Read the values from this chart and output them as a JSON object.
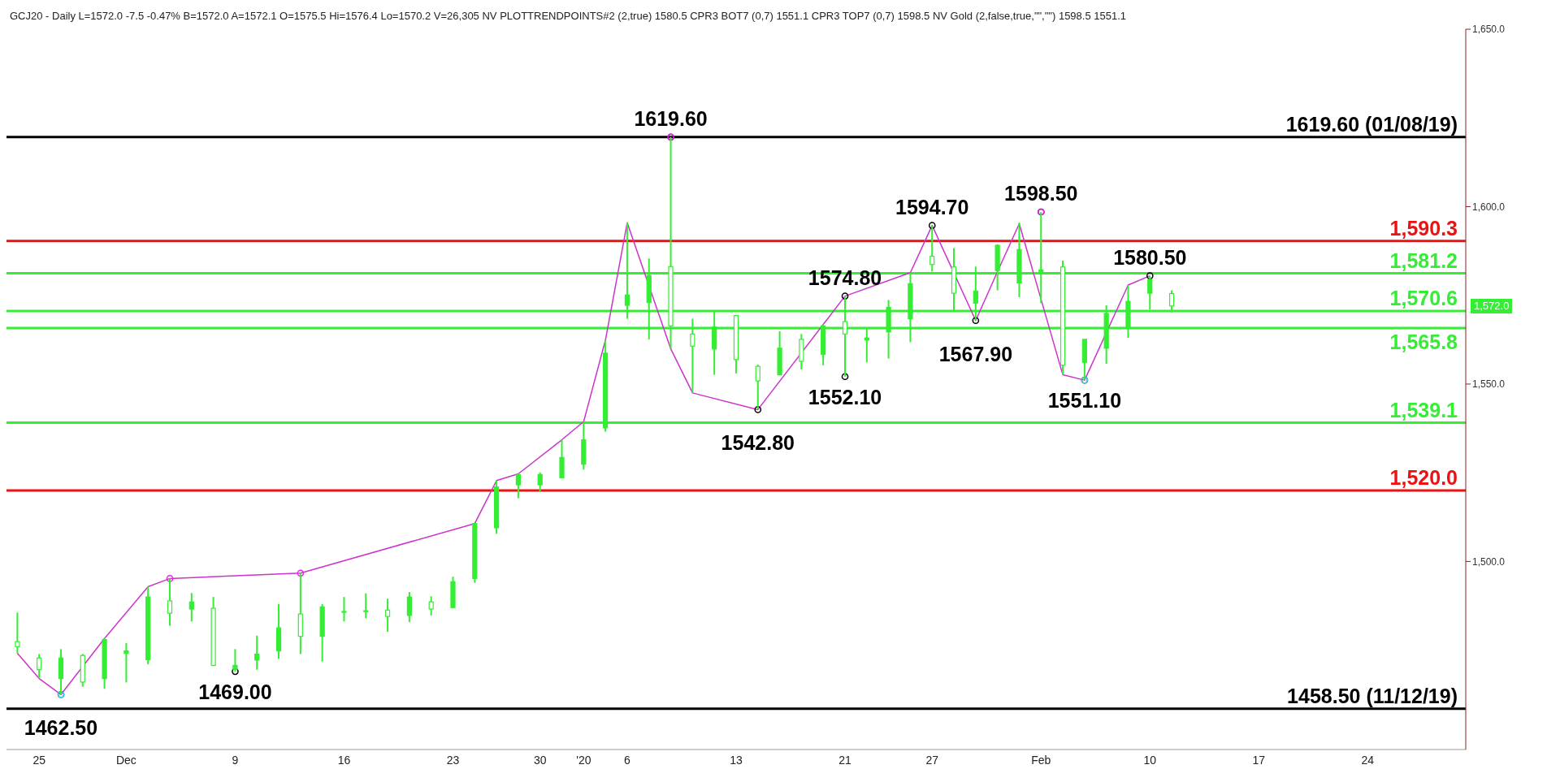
{
  "chart_data": {
    "type": "candlestick",
    "annotations": [
      "GCJ20 - Daily  L=1572.0  -7.5  -0.47%  B=1572.0  A=1572.1  O=1575.5  Hi=1576.4  Lo=1570.2  V=26,305  NV  PLOTTRENDPOINTS#2 (2,true)  1580.5  CPR3 BOT7 (0,7)  1551.1  CPR3 TOP7 (0,7)  1598.5  NV Gold (2,false,true,\"\",\"\")  1598.5  1551.1",
      "1,572.0"
    ],
    "categories": [
      null,
      "25",
      null,
      null,
      null,
      "Dec",
      null,
      null,
      null,
      null,
      "9",
      null,
      null,
      null,
      null,
      "16",
      null,
      null,
      null,
      null,
      "23",
      null,
      null,
      null,
      "30",
      null,
      "'20",
      null,
      "6",
      null,
      null,
      null,
      null,
      "13",
      null,
      null,
      null,
      null,
      "21",
      null,
      null,
      null,
      "27",
      null,
      null,
      null,
      null,
      "Feb",
      null,
      null,
      null,
      null,
      "10",
      null,
      null,
      null,
      null,
      "17",
      null,
      null,
      null,
      null,
      "24",
      null,
      null,
      null,
      null
    ],
    "ohlc": [
      [
        1477.4,
        1485.6,
        1474.1,
        1476.0
      ],
      [
        1472.8,
        1473.9,
        1467.0,
        1469.5
      ],
      [
        1467.0,
        1475.3,
        1462.5,
        1472.8
      ],
      [
        1473.5,
        1473.9,
        1464.7,
        1466.0
      ],
      [
        1467.0,
        1478.5,
        1464.1,
        1478.0
      ],
      [
        1474.1,
        1477.0,
        1465.9,
        1474.8
      ],
      [
        1472.3,
        1492.9,
        1471.0,
        1490.0
      ],
      [
        1488.9,
        1495.2,
        1481.9,
        1485.4
      ],
      [
        1486.6,
        1491.1,
        1483.1,
        1488.6
      ],
      [
        1486.8,
        1490.0,
        1470.5,
        1470.7
      ],
      [
        1469.6,
        1475.3,
        1469.0,
        1470.7
      ],
      [
        1472.2,
        1479.1,
        1469.5,
        1473.9
      ],
      [
        1474.8,
        1488.0,
        1472.6,
        1481.3
      ],
      [
        1485.2,
        1496.7,
        1473.9,
        1478.9
      ],
      [
        1478.9,
        1488.0,
        1471.8,
        1487.2
      ],
      [
        1485.9,
        1490.0,
        1483.1,
        1485.9
      ],
      [
        1486.1,
        1491.0,
        1484.0,
        1486.0
      ],
      [
        1486.3,
        1489.5,
        1480.2,
        1484.5
      ],
      [
        1484.8,
        1491.4,
        1482.9,
        1490.0
      ],
      [
        1488.6,
        1490.2,
        1484.8,
        1486.6
      ],
      [
        1487.0,
        1495.7,
        1487.0,
        1494.3
      ],
      [
        1495.2,
        1510.7,
        1494.0,
        1510.7
      ],
      [
        1509.5,
        1522.8,
        1507.8,
        1521.0
      ],
      [
        1521.6,
        1524.7,
        1517.8,
        1524.5
      ],
      [
        1521.6,
        1525.1,
        1519.7,
        1524.5
      ],
      [
        1523.6,
        1534.3,
        1523.6,
        1529.3
      ],
      [
        1527.4,
        1539.4,
        1525.9,
        1534.3
      ],
      [
        1537.7,
        1562.4,
        1536.6,
        1558.7
      ],
      [
        1572.2,
        1595.5,
        1568.4,
        1575.1
      ],
      [
        1573.0,
        1585.4,
        1562.6,
        1580.6
      ],
      [
        1583.1,
        1619.6,
        1559.9,
        1566.4
      ],
      [
        1564.1,
        1568.4,
        1547.5,
        1560.7
      ],
      [
        1559.9,
        1570.5,
        1552.6,
        1566.1
      ],
      [
        1569.3,
        1569.5,
        1553.0,
        1556.9
      ],
      [
        1555.0,
        1555.5,
        1542.8,
        1550.9
      ],
      [
        1552.6,
        1564.9,
        1552.6,
        1560.1
      ],
      [
        1562.6,
        1564.1,
        1554.1,
        1556.4
      ],
      [
        1558.4,
        1566.8,
        1555.3,
        1566.4
      ],
      [
        1567.6,
        1574.8,
        1552.1,
        1564.1
      ],
      [
        1562.4,
        1565.6,
        1556.1,
        1563.0
      ],
      [
        1564.7,
        1573.7,
        1557.2,
        1571.6
      ],
      [
        1568.4,
        1581.4,
        1561.8,
        1578.3
      ],
      [
        1586.0,
        1594.7,
        1581.7,
        1583.7
      ],
      [
        1583.0,
        1588.3,
        1570.7,
        1575.6
      ],
      [
        1572.8,
        1583.1,
        1567.9,
        1576.2
      ],
      [
        1582.0,
        1589.4,
        1576.4,
        1589.1
      ],
      [
        1578.5,
        1595.5,
        1574.5,
        1587.9
      ],
      [
        1581.4,
        1598.5,
        1572.8,
        1582.2
      ],
      [
        1583.0,
        1584.8,
        1552.6,
        1555.3
      ],
      [
        1556.1,
        1562.6,
        1551.1,
        1562.6
      ],
      [
        1560.1,
        1572.2,
        1555.7,
        1569.9
      ],
      [
        1565.9,
        1577.9,
        1563.0,
        1573.3
      ],
      [
        1575.6,
        1580.5,
        1571.0,
        1579.4
      ],
      [
        1575.5,
        1576.4,
        1570.2,
        1572.0
      ],
      null,
      null,
      null,
      null,
      null,
      null,
      null,
      null,
      null,
      null,
      null,
      null,
      null
    ],
    "color": "#33ee33",
    "series": [
      {
        "type": "line",
        "color": "#cc33cc",
        "values": [
          1474.1,
          1467.0,
          1462.5,
          null,
          1478.3,
          null,
          1492.9,
          1495.2,
          null,
          null,
          null,
          null,
          null,
          1496.7,
          null,
          null,
          null,
          null,
          null,
          null,
          null,
          1510.7,
          1522.8,
          1524.7,
          null,
          1534.3,
          1539.4,
          1562.4,
          1595.5,
          null,
          1559.9,
          1547.5,
          null,
          null,
          1542.8,
          null,
          null,
          null,
          1574.8,
          null,
          null,
          1581.4,
          1594.7,
          null,
          1567.9,
          1581.7,
          1595.2,
          null,
          1552.6,
          1551.1,
          null,
          1577.9,
          1580.5,
          null,
          null,
          null,
          null,
          null,
          null,
          null,
          null,
          null,
          null,
          null,
          null,
          null,
          null
        ]
      },
      {
        "type": "scatter",
        "color": "#000000",
        "marker": "circle",
        "values": [
          null,
          null,
          null,
          null,
          null,
          null,
          null,
          null,
          null,
          null,
          null,
          null,
          null,
          null,
          null,
          null,
          null,
          null,
          null,
          null,
          null,
          null,
          null,
          null,
          null,
          null,
          null,
          null,
          null,
          null,
          1619.6,
          null,
          null,
          null,
          null,
          null,
          null,
          null,
          1574.8,
          null,
          null,
          null,
          1594.7,
          null,
          null,
          null,
          null,
          1598.5,
          null,
          null,
          null,
          null,
          1580.5,
          null,
          null,
          null,
          null,
          null,
          null,
          null,
          null,
          null,
          null,
          null,
          null,
          null,
          null
        ],
        "value_labels": [
          null,
          null,
          null,
          null,
          null,
          null,
          null,
          null,
          null,
          null,
          null,
          null,
          null,
          null,
          null,
          null,
          null,
          null,
          null,
          null,
          null,
          null,
          null,
          null,
          null,
          null,
          null,
          null,
          null,
          null,
          "1619.60",
          null,
          null,
          null,
          null,
          null,
          null,
          null,
          "1574.80",
          null,
          null,
          null,
          "1594.70",
          null,
          null,
          null,
          null,
          "1598.50",
          null,
          null,
          null,
          null,
          "1580.50",
          null,
          null,
          null,
          null,
          null,
          null,
          null,
          null,
          null,
          null,
          null,
          null,
          null,
          null
        ]
      },
      {
        "type": "scatter",
        "color": "#000000",
        "marker": "circle",
        "values": [
          null,
          null,
          1462.5,
          null,
          null,
          null,
          null,
          null,
          null,
          null,
          1469.0,
          null,
          null,
          null,
          null,
          null,
          null,
          null,
          null,
          null,
          null,
          null,
          null,
          null,
          null,
          null,
          null,
          null,
          null,
          null,
          null,
          null,
          null,
          null,
          1542.8,
          null,
          null,
          null,
          1552.1,
          null,
          null,
          null,
          null,
          null,
          1567.9,
          null,
          null,
          null,
          null,
          1551.1,
          null,
          null,
          null,
          null,
          null,
          null,
          null,
          null,
          null,
          null,
          null,
          null,
          null,
          null,
          null,
          null,
          null
        ],
        "value_labels": [
          null,
          null,
          "1462.50",
          null,
          null,
          null,
          null,
          null,
          null,
          null,
          "1469.00",
          null,
          null,
          null,
          null,
          null,
          null,
          null,
          null,
          null,
          null,
          null,
          null,
          null,
          null,
          null,
          null,
          null,
          null,
          null,
          null,
          null,
          null,
          null,
          "1542.80",
          null,
          null,
          null,
          "1552.10",
          null,
          null,
          null,
          null,
          null,
          "1567.90",
          null,
          null,
          null,
          null,
          "1551.10",
          null,
          null,
          null,
          null,
          null,
          null,
          null,
          null,
          null,
          null,
          null,
          null,
          null,
          null,
          null,
          null,
          null
        ]
      },
      {
        "type": "scatter",
        "color": "#ee22ee",
        "marker": "circle",
        "values": [
          null,
          null,
          null,
          null,
          null,
          null,
          null,
          1495.2,
          null,
          null,
          null,
          null,
          null,
          1496.7,
          null,
          null,
          null,
          null,
          null,
          null,
          null,
          null,
          null,
          null,
          null,
          null,
          null,
          null,
          null,
          null,
          1619.6,
          null,
          null,
          null,
          null,
          null,
          null,
          null,
          null,
          null,
          null,
          null,
          null,
          null,
          null,
          null,
          null,
          1598.5,
          null,
          null,
          null,
          null,
          null,
          null,
          null,
          null,
          null,
          null,
          null,
          null,
          null,
          null,
          null,
          null,
          null,
          null,
          null
        ]
      },
      {
        "type": "scatter",
        "color": "#33ddee",
        "marker": "circle",
        "values": [
          null,
          null,
          1462.5,
          null,
          null,
          null,
          null,
          null,
          null,
          null,
          null,
          null,
          null,
          null,
          null,
          null,
          null,
          null,
          null,
          null,
          null,
          null,
          null,
          null,
          null,
          null,
          null,
          null,
          null,
          null,
          null,
          null,
          null,
          null,
          null,
          null,
          null,
          null,
          null,
          null,
          null,
          null,
          null,
          null,
          null,
          null,
          null,
          null,
          null,
          1551.1,
          null,
          null,
          null,
          null,
          null,
          null,
          null,
          null,
          null,
          null,
          null,
          null,
          null,
          null,
          null,
          null,
          null
        ]
      }
    ],
    "ylim": [
      1447,
      1650
    ],
    "yticks": [
      {
        "value": 1500,
        "label": "1,500.0"
      },
      {
        "value": 1550,
        "label": "1,550.0"
      },
      {
        "value": 1600,
        "label": "1,600.0"
      },
      {
        "value": 1650,
        "label": "1,650.0"
      }
    ],
    "ref_lines": [
      {
        "axis": "y",
        "value": 1619.6,
        "label": "1619.60 (01/08/19)",
        "color": "#000000"
      },
      {
        "axis": "y",
        "value": 1590.3,
        "label": "1,590.3",
        "color": "#ee1111"
      },
      {
        "axis": "y",
        "value": 1581.2,
        "label": "1,581.2",
        "color": "#33ee33"
      },
      {
        "axis": "y",
        "value": 1570.6,
        "label": "1,570.6",
        "color": "#33ee33"
      },
      {
        "axis": "y",
        "value": 1565.8,
        "label": "1,565.8",
        "color": "#33ee33"
      },
      {
        "axis": "y",
        "value": 1539.1,
        "label": "1,539.1",
        "color": "#33ee33"
      },
      {
        "axis": "y",
        "value": 1520.0,
        "label": "1,520.0",
        "color": "#ee1111"
      },
      {
        "axis": "y",
        "value": 1458.5,
        "label": "1458.50 (11/12/19)",
        "color": "#000000"
      }
    ]
  }
}
